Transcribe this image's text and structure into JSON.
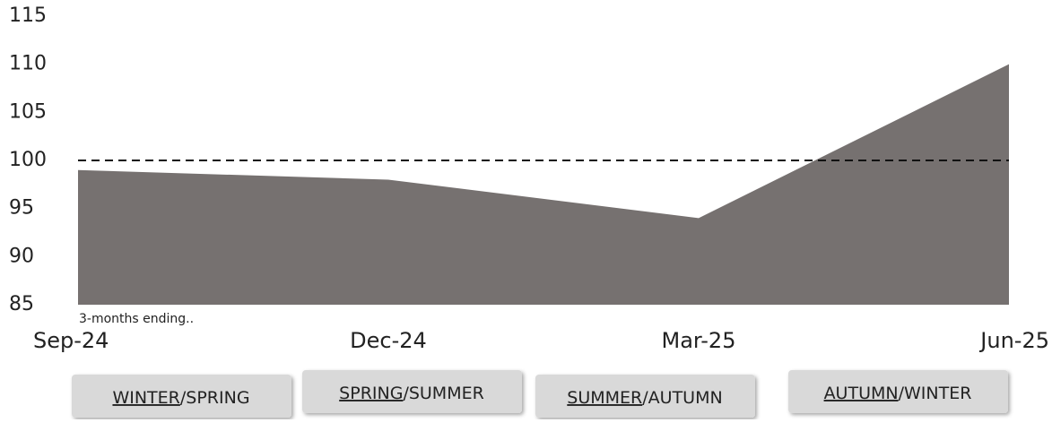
{
  "chart_data": {
    "type": "area",
    "categories": [
      "Sep-24",
      "Dec-24",
      "Mar-25",
      "Jun-25"
    ],
    "values": [
      99,
      98,
      94,
      110
    ],
    "color": "#767170",
    "ylim": [
      85,
      115
    ],
    "yticks": [
      85,
      90,
      95,
      100,
      105,
      110,
      115
    ],
    "reference_line": 100,
    "annotation": "3-months ending.."
  },
  "buttons": [
    {
      "underlined": "WINTER",
      "rest": "/SPRING"
    },
    {
      "underlined": "SPRING",
      "rest": "/SUMMER"
    },
    {
      "underlined": "SUMMER",
      "rest": "/AUTUMN"
    },
    {
      "underlined": "AUTUMN",
      "rest": "/WINTER"
    }
  ]
}
